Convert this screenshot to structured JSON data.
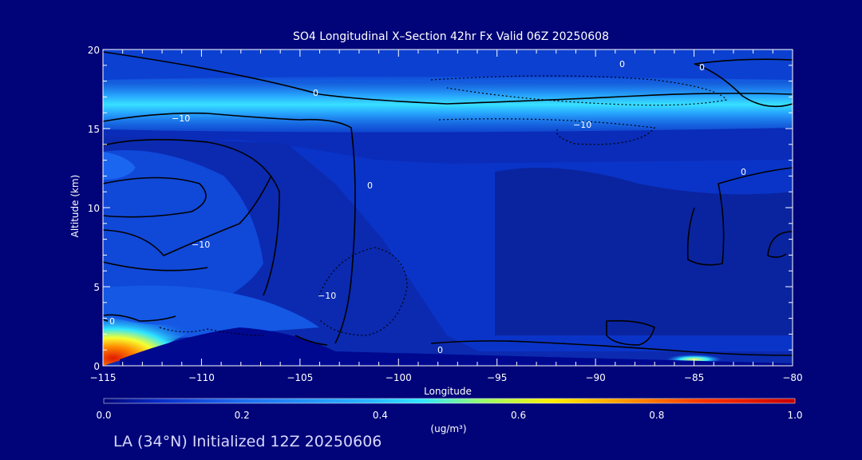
{
  "chart_data": {
    "type": "heatmap",
    "title": "SO4 Longitudinal X–Section 42hr  Fx Valid 06Z 20250608",
    "xlabel": "Longitude",
    "ylabel": "Altitude (km)",
    "xlim": [
      -115,
      -80
    ],
    "ylim": [
      0,
      20
    ],
    "x_ticks": [
      -115,
      -110,
      -105,
      -100,
      -95,
      -90,
      -85,
      -80
    ],
    "x_tick_labels": [
      "−115",
      "−110",
      "−105",
      "−100",
      "−95",
      "−90",
      "−85",
      "−80"
    ],
    "y_ticks": [
      0,
      5,
      10,
      15,
      20
    ],
    "y_tick_labels": [
      "0",
      "5",
      "10",
      "15",
      "20"
    ],
    "colorbar": {
      "ticks": [
        0.0,
        0.2,
        0.4,
        0.6,
        0.8,
        1.0
      ],
      "tick_labels": [
        "0.0",
        "0.2",
        "0.4",
        "0.6",
        "0.8",
        "1.0"
      ],
      "units_label": "(ug/m³)",
      "colors": [
        "#000478",
        "#0a2cc8",
        "#1e6ef0",
        "#28b4ff",
        "#30e6ff",
        "#9aff6a",
        "#ffee00",
        "#ff9a00",
        "#ff3200",
        "#c80000"
      ]
    },
    "features": [
      {
        "name": "stratospheric layer",
        "lon_range": [
          -115,
          -80
        ],
        "alt_km": 16.5,
        "max_value": 0.4
      },
      {
        "name": "surface plume",
        "lon": -115,
        "alt_km": 0.5,
        "max_value": 0.9
      },
      {
        "name": "surface hotspot",
        "lon": -85,
        "alt_km": 0.2,
        "max_value": 0.5
      }
    ],
    "contour_labels": [
      "0",
      "−10",
      "−10",
      "0",
      "−10",
      "0",
      "0",
      "0",
      "−10",
      "0",
      "0"
    ],
    "grid": false,
    "legend": "colorbar below plot"
  },
  "footer_text": "LA (34°N) Initialized 12Z 20250606"
}
